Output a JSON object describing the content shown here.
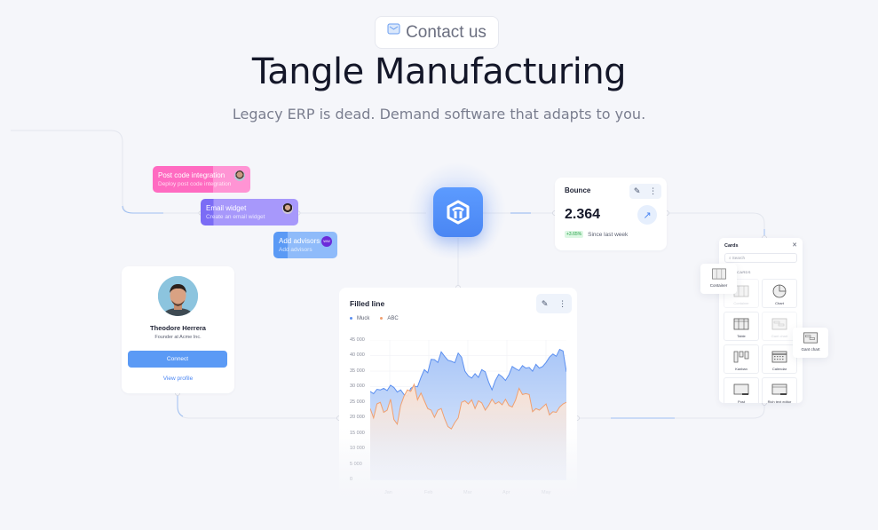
{
  "header": {
    "contact_label": "Contact us",
    "title": "Tangle Manufacturing",
    "subtitle": "Legacy ERP is dead. Demand software that adapts to you."
  },
  "tasks": [
    {
      "title": "Post code integration",
      "subtitle": "Deploy post code integration",
      "color": "#ff6bc1"
    },
    {
      "title": "Email widget",
      "subtitle": "Create an email widget",
      "color": "#8a7cf7"
    },
    {
      "title": "Add advisors",
      "subtitle": "Add advisors",
      "color": "#5b9af5",
      "avatar_initials": "WW"
    }
  ],
  "bounce": {
    "label": "Bounce",
    "value": "2.364",
    "change": "+3.65%",
    "since": "Since last week",
    "edit_icon": "✎",
    "more_icon": "⋮",
    "arrow_icon": "↗"
  },
  "profile": {
    "name": "Theodore Herrera",
    "role": "Founder at Acme Inc.",
    "connect_label": "Connect",
    "view_label": "View profile"
  },
  "chart": {
    "title": "Filled line",
    "edit_icon": "✎",
    "more_icon": "⋮"
  },
  "chart_data": {
    "type": "area",
    "title": "Filled line",
    "categories": [
      "Jan",
      "Feb",
      "Mar",
      "Apr",
      "May"
    ],
    "yticks": [
      "45 000",
      "40 000",
      "35 000",
      "30 000",
      "25 000",
      "20 000",
      "15 000",
      "10 000",
      "5 000",
      "0"
    ],
    "ylim": [
      0,
      45000
    ],
    "grid": true,
    "legend_position": "top-left",
    "series": [
      {
        "name": "Muck",
        "color": "#5b8ff0",
        "values": [
          28500,
          27800,
          29200,
          29000,
          29500,
          28800,
          30500,
          29800,
          28300,
          29000,
          27500,
          27000,
          29500,
          30200,
          30000,
          33000,
          35500,
          34500,
          38800,
          38700,
          37800,
          41200,
          39800,
          38500,
          38200,
          37700,
          40800,
          39500,
          35000,
          33500,
          32800,
          34200,
          33000,
          35500,
          34800,
          31500,
          29000,
          32000,
          34000,
          33200,
          32000,
          33800,
          36500,
          35800,
          35200,
          36800,
          36000,
          36200,
          35000,
          37200,
          36000,
          36500,
          37800,
          39500,
          40500,
          39800,
          42000,
          41500,
          34800
        ]
      },
      {
        "name": "ABC",
        "color": "#f0a070",
        "values": [
          23000,
          20000,
          24500,
          25000,
          21800,
          22500,
          26000,
          19500,
          18000,
          24000,
          27000,
          29000,
          28500,
          30800,
          25800,
          28000,
          25500,
          23000,
          22500,
          20200,
          22500,
          23000,
          19800,
          17200,
          16500,
          18500,
          20000,
          25000,
          25500,
          24500,
          25800,
          23000,
          25500,
          24800,
          22500,
          24000,
          26000,
          24500,
          25200,
          24200,
          26000,
          24000,
          23500,
          25800,
          29500,
          27500,
          27800,
          27500,
          22000,
          23000,
          22500,
          23500,
          24500,
          21000,
          22000,
          21800,
          23500,
          24500,
          25000
        ]
      }
    ]
  },
  "panel": {
    "title": "Cards",
    "close_icon": "✕",
    "search_placeholder": "Search",
    "section_label": "CORE CARDS",
    "tiles": [
      {
        "label": "Container"
      },
      {
        "label": "Chart"
      },
      {
        "label": "Table"
      },
      {
        "label": "Gant chart"
      },
      {
        "label": "Kanban"
      },
      {
        "label": "Calendar"
      },
      {
        "label": "Post"
      },
      {
        "label": "Rich text editor"
      }
    ],
    "floating_container_label": "Container",
    "floating_gantt_label": "Gant chart"
  }
}
